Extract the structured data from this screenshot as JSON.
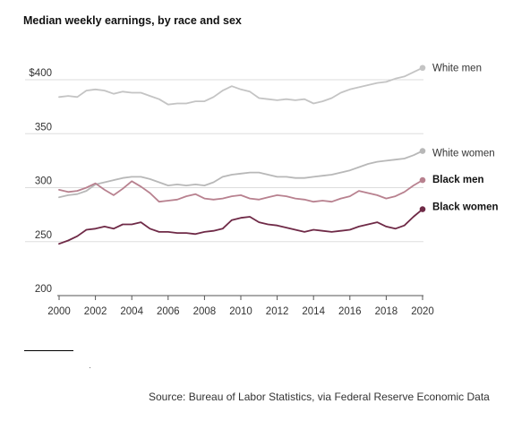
{
  "title": "Median weekly earnings, by race and sex",
  "source": "Source: Bureau of Labor Statistics, via Federal Reserve Economic Data",
  "chart_data": {
    "type": "line",
    "title": "Median weekly earnings, by race and sex",
    "xlabel": "",
    "ylabel": "",
    "xlim": [
      2000,
      2020
    ],
    "ylim": [
      200,
      410
    ],
    "x_ticks": [
      2000,
      2002,
      2004,
      2006,
      2008,
      2010,
      2012,
      2014,
      2016,
      2018,
      2020
    ],
    "y_ticks": [
      {
        "value": 200,
        "label": "200"
      },
      {
        "value": 250,
        "label": "250"
      },
      {
        "value": 300,
        "label": "300"
      },
      {
        "value": 350,
        "label": "350"
      },
      {
        "value": 400,
        "label": "$400"
      }
    ],
    "grid": true,
    "legend": "direct labels at right end of lines",
    "series": [
      {
        "name": "White men",
        "color": "#c4c4c4",
        "label_bold": false,
        "x": [
          2000,
          2000.5,
          2001,
          2001.5,
          2002,
          2002.5,
          2003,
          2003.5,
          2004,
          2004.5,
          2005,
          2005.5,
          2006,
          2006.5,
          2007,
          2007.5,
          2008,
          2008.5,
          2009,
          2009.5,
          2010,
          2010.5,
          2011,
          2011.5,
          2012,
          2012.5,
          2013,
          2013.5,
          2014,
          2014.5,
          2015,
          2015.5,
          2016,
          2016.5,
          2017,
          2017.5,
          2018,
          2018.5,
          2019,
          2019.5,
          2020
        ],
        "values": [
          384,
          385,
          384,
          390,
          391,
          390,
          387,
          389,
          388,
          388,
          385,
          382,
          377,
          378,
          378,
          380,
          380,
          384,
          390,
          394,
          391,
          389,
          383,
          382,
          381,
          382,
          381,
          382,
          378,
          380,
          383,
          388,
          391,
          393,
          395,
          397,
          398,
          401,
          403,
          407,
          411
        ]
      },
      {
        "name": "White women",
        "color": "#b8b8b8",
        "label_bold": false,
        "x": [
          2000,
          2000.5,
          2001,
          2001.5,
          2002,
          2002.5,
          2003,
          2003.5,
          2004,
          2004.5,
          2005,
          2005.5,
          2006,
          2006.5,
          2007,
          2007.5,
          2008,
          2008.5,
          2009,
          2009.5,
          2010,
          2010.5,
          2011,
          2011.5,
          2012,
          2012.5,
          2013,
          2013.5,
          2014,
          2014.5,
          2015,
          2015.5,
          2016,
          2016.5,
          2017,
          2017.5,
          2018,
          2018.5,
          2019,
          2019.5,
          2020
        ],
        "values": [
          291,
          293,
          294,
          297,
          303,
          305,
          307,
          309,
          310,
          310,
          308,
          305,
          302,
          303,
          302,
          303,
          302,
          305,
          310,
          312,
          313,
          314,
          314,
          312,
          310,
          310,
          309,
          309,
          310,
          311,
          312,
          314,
          316,
          319,
          322,
          324,
          325,
          326,
          327,
          330,
          334
        ]
      },
      {
        "name": "Black men",
        "color": "#b8818f",
        "label_bold": true,
        "x": [
          2000,
          2000.5,
          2001,
          2001.5,
          2002,
          2002.5,
          2003,
          2003.5,
          2004,
          2004.5,
          2005,
          2005.5,
          2006,
          2006.5,
          2007,
          2007.5,
          2008,
          2008.5,
          2009,
          2009.5,
          2010,
          2010.5,
          2011,
          2011.5,
          2012,
          2012.5,
          2013,
          2013.5,
          2014,
          2014.5,
          2015,
          2015.5,
          2016,
          2016.5,
          2017,
          2017.5,
          2018,
          2018.5,
          2019,
          2019.5,
          2020
        ],
        "values": [
          298,
          296,
          297,
          300,
          304,
          298,
          293,
          299,
          306,
          301,
          295,
          287,
          288,
          289,
          292,
          294,
          290,
          289,
          290,
          292,
          293,
          290,
          289,
          291,
          293,
          292,
          290,
          289,
          287,
          288,
          287,
          290,
          292,
          297,
          295,
          293,
          290,
          292,
          296,
          302,
          307
        ]
      },
      {
        "name": "Black women",
        "color": "#6f2a47",
        "label_bold": true,
        "x": [
          2000,
          2000.5,
          2001,
          2001.5,
          2002,
          2002.5,
          2003,
          2003.5,
          2004,
          2004.5,
          2005,
          2005.5,
          2006,
          2006.5,
          2007,
          2007.5,
          2008,
          2008.5,
          2009,
          2009.5,
          2010,
          2010.5,
          2011,
          2011.5,
          2012,
          2012.5,
          2013,
          2013.5,
          2014,
          2014.5,
          2015,
          2015.5,
          2016,
          2016.5,
          2017,
          2017.5,
          2018,
          2018.5,
          2019,
          2019.5,
          2020
        ],
        "values": [
          248,
          251,
          255,
          261,
          262,
          264,
          262,
          266,
          266,
          268,
          262,
          259,
          259,
          258,
          258,
          257,
          259,
          260,
          262,
          270,
          272,
          273,
          268,
          266,
          265,
          263,
          261,
          259,
          261,
          260,
          259,
          260,
          261,
          264,
          266,
          268,
          264,
          262,
          265,
          273,
          280
        ]
      }
    ]
  }
}
